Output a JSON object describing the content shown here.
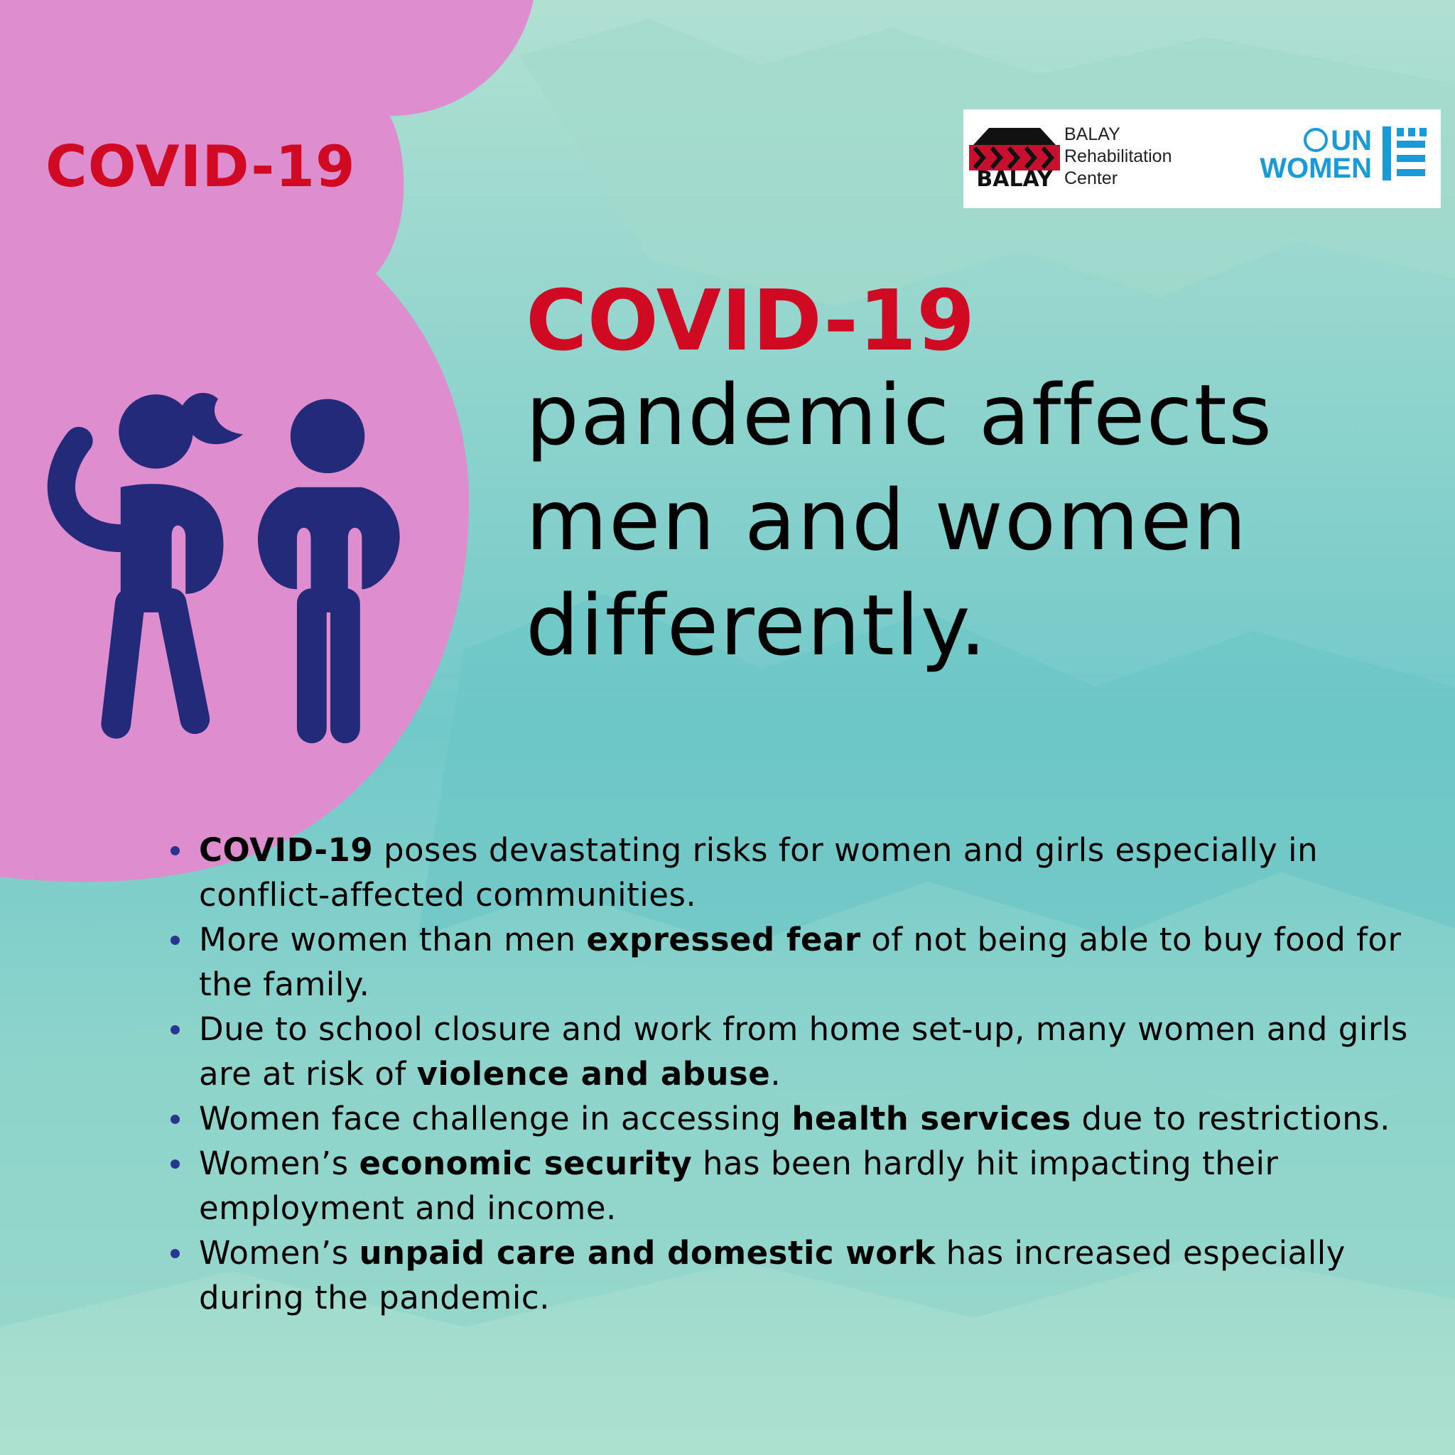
{
  "tag": "COVID-19",
  "logos": {
    "balay": {
      "mark": "BALAY",
      "name": [
        "BALAY",
        "Rehabilitation",
        "Center"
      ]
    },
    "un_women": {
      "line1": "UN",
      "line2": "WOMEN"
    }
  },
  "headline": {
    "highlight": "COVID-19",
    "lines": [
      "pandemic affects",
      "men and women",
      "differently."
    ]
  },
  "bullets": [
    [
      {
        "text": "COVID-19",
        "bold": true
      },
      {
        "text": " poses devastating risks for women and girls especially in conflict-affected communities.",
        "bold": false
      }
    ],
    [
      {
        "text": "More women than men ",
        "bold": false
      },
      {
        "text": "expressed fear",
        "bold": true
      },
      {
        "text": " of not being able to buy food for the family.",
        "bold": false
      }
    ],
    [
      {
        "text": "Due to school closure and work from home set-up, many women and girls are at risk of ",
        "bold": false
      },
      {
        "text": "violence and abuse",
        "bold": true
      },
      {
        "text": ".",
        "bold": false
      }
    ],
    [
      {
        "text": "Women face challenge in accessing ",
        "bold": false
      },
      {
        "text": "health services",
        "bold": true
      },
      {
        "text": " due to restrictions.",
        "bold": false
      }
    ],
    [
      {
        "text": "Women’s ",
        "bold": false
      },
      {
        "text": "economic security",
        "bold": true
      },
      {
        "text": " has been hardly hit impacting their employment and income.",
        "bold": false
      }
    ],
    [
      {
        "text": "Women’s ",
        "bold": false
      },
      {
        "text": "unpaid care and domestic work",
        "bold": true
      },
      {
        "text": " has increased especially during the pandemic.",
        "bold": false
      }
    ]
  ]
}
